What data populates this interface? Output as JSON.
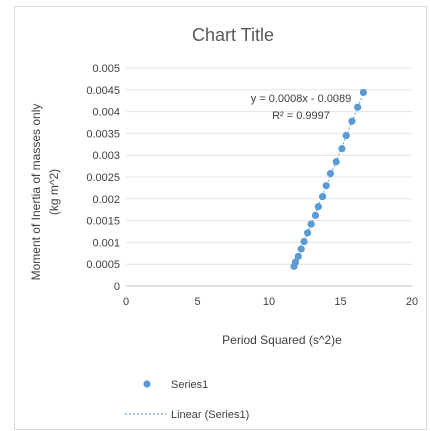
{
  "chart_data": {
    "type": "scatter",
    "title": "Chart Title",
    "xlabel": "Period Squared (s^2)e",
    "ylabel_lines": [
      "Moment of Inertia of masses only",
      "(kg m^2)"
    ],
    "xlim": [
      0,
      20
    ],
    "ylim": [
      0,
      0.005
    ],
    "x_ticks": [
      0,
      5,
      10,
      15,
      20
    ],
    "x_tick_labels": [
      "0",
      "5",
      "10",
      "15",
      "20"
    ],
    "y_ticks": [
      0,
      0.0005,
      0.001,
      0.0015,
      0.002,
      0.0025,
      0.003,
      0.0035,
      0.004,
      0.0045,
      0.005
    ],
    "y_tick_labels": [
      "0",
      "0.0005",
      "0.001",
      "0.0015",
      "0.002",
      "0.0025",
      "0.003",
      "0.0035",
      "0.004",
      "0.0045",
      "0.005"
    ],
    "grid": "horizontal",
    "legend_position": "bottom",
    "series": [
      {
        "name": "Series1",
        "color": "#5b9bd5",
        "points": [
          {
            "x": 11.75,
            "y": 0.00045
          },
          {
            "x": 11.85,
            "y": 0.00055
          },
          {
            "x": 12.05,
            "y": 0.00068
          },
          {
            "x": 12.25,
            "y": 0.00085
          },
          {
            "x": 12.45,
            "y": 0.00102
          },
          {
            "x": 12.7,
            "y": 0.00122
          },
          {
            "x": 12.95,
            "y": 0.00142
          },
          {
            "x": 13.25,
            "y": 0.00162
          },
          {
            "x": 13.45,
            "y": 0.00182
          },
          {
            "x": 13.75,
            "y": 0.00205
          },
          {
            "x": 14.0,
            "y": 0.0023
          },
          {
            "x": 14.3,
            "y": 0.00258
          },
          {
            "x": 14.7,
            "y": 0.00285
          },
          {
            "x": 15.1,
            "y": 0.00315
          },
          {
            "x": 15.4,
            "y": 0.00345
          },
          {
            "x": 15.8,
            "y": 0.00378
          },
          {
            "x": 16.2,
            "y": 0.0041
          },
          {
            "x": 16.6,
            "y": 0.00444
          }
        ]
      }
    ],
    "trendline": {
      "name": "Linear (Series1)",
      "type": "linear",
      "equation": "y = 0.0008x - 0.0089",
      "r_squared": "R² = 0.9997",
      "color": "#5b9bd5"
    }
  }
}
